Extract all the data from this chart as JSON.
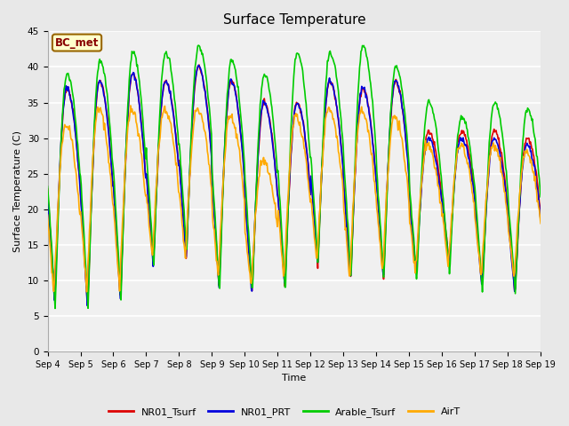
{
  "title": "Surface Temperature",
  "ylabel": "Surface Temperature (C)",
  "xlabel": "Time",
  "ylim": [
    0,
    45
  ],
  "fig_bg": "#e8e8e8",
  "plot_bg": "#f0f0f0",
  "annotation_text": "BC_met",
  "annotation_bg": "#ffffcc",
  "annotation_border": "#996600",
  "annotation_text_color": "#880000",
  "legend_entries": [
    "NR01_Tsurf",
    "NR01_PRT",
    "Arable_Tsurf",
    "AirT"
  ],
  "line_colors": [
    "#dd0000",
    "#0000dd",
    "#00cc00",
    "#ffaa00"
  ],
  "tick_labels": [
    "Sep 4",
    "Sep 5",
    "Sep 6",
    "Sep 7",
    "Sep 8",
    "Sep 9",
    "Sep 10",
    "Sep 11",
    "Sep 12",
    "Sep 13",
    "Sep 14",
    "Sep 15",
    "Sep 16",
    "Sep 17",
    "Sep 18",
    "Sep 19"
  ],
  "yticks": [
    0,
    5,
    10,
    15,
    20,
    25,
    30,
    35,
    40,
    45
  ]
}
